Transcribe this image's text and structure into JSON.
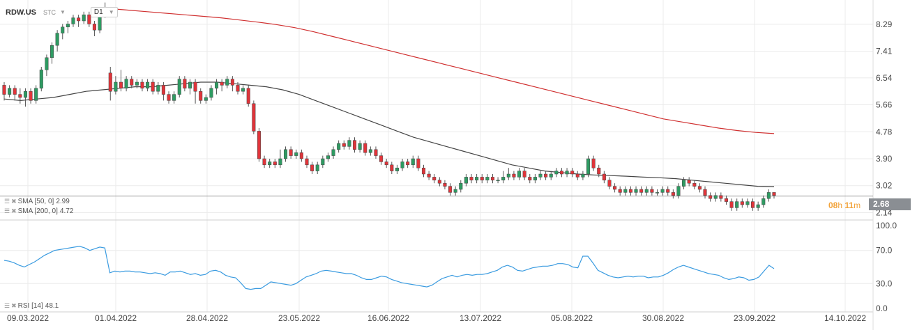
{
  "header": {
    "symbol": "RDW.US",
    "type": "STC",
    "timeframe": "D1"
  },
  "indicators": {
    "sma50": {
      "label": "SMA [50, 0]",
      "value": "2.99",
      "color": "#444444"
    },
    "sma200": {
      "label": "SMA [200, 0]",
      "value": "4.72",
      "color": "#d03030"
    },
    "rsi": {
      "label": "RSI [14]",
      "value": "48.1",
      "color": "#3a9be0"
    }
  },
  "last_price": "2.68",
  "timer": {
    "h": "08",
    "h_unit": "h",
    "m": "11",
    "m_unit": "m"
  },
  "colors": {
    "up": "#2e9b62",
    "down": "#e0343a",
    "grid": "#ebebeb",
    "last_line": "#999999"
  },
  "chart_data": {
    "type": "candlestick",
    "price_ticks": [
      "8.29",
      "7.41",
      "6.54",
      "5.66",
      "4.78",
      "3.90",
      "3.02",
      "2.14"
    ],
    "rsi_ticks": [
      "100.0",
      "70.0",
      "30.0",
      "0.0"
    ],
    "date_labels": [
      "09.03.2022",
      "01.04.2022",
      "28.04.2022",
      "23.05.2022",
      "16.06.2022",
      "13.07.2022",
      "05.08.2022",
      "30.08.2022",
      "23.09.2022",
      "14.10.2022"
    ],
    "ylim": [
      1.9,
      8.9
    ],
    "candles": [
      [
        6.3,
        6.0,
        6.4,
        5.8
      ],
      [
        6.0,
        6.2,
        6.3,
        5.9
      ],
      [
        6.2,
        6.0,
        6.3,
        5.8
      ],
      [
        6.0,
        5.9,
        6.2,
        5.7
      ],
      [
        5.9,
        6.1,
        6.2,
        5.6
      ],
      [
        6.1,
        5.8,
        6.2,
        5.7
      ],
      [
        5.8,
        6.2,
        6.3,
        5.7
      ],
      [
        6.2,
        6.8,
        6.9,
        6.1
      ],
      [
        6.8,
        7.2,
        7.3,
        6.6
      ],
      [
        7.2,
        7.6,
        7.7,
        7.0
      ],
      [
        7.6,
        8.0,
        8.1,
        7.4
      ],
      [
        8.0,
        8.2,
        8.3,
        7.8
      ],
      [
        8.2,
        8.3,
        8.4,
        8.0
      ],
      [
        8.3,
        8.5,
        8.6,
        8.2
      ],
      [
        8.5,
        8.4,
        8.6,
        8.2
      ],
      [
        8.4,
        8.6,
        8.7,
        8.3
      ],
      [
        8.6,
        8.3,
        8.7,
        8.2
      ],
      [
        8.3,
        8.1,
        8.4,
        7.9
      ],
      [
        8.1,
        8.6,
        8.7,
        8.0
      ],
      [
        8.6,
        8.8,
        9.0,
        8.5
      ],
      [
        6.7,
        6.1,
        6.9,
        5.8
      ],
      [
        6.1,
        6.4,
        6.6,
        6.0
      ],
      [
        6.4,
        6.2,
        6.8,
        6.1
      ],
      [
        6.2,
        6.5,
        6.6,
        6.1
      ],
      [
        6.5,
        6.3,
        6.6,
        6.2
      ],
      [
        6.3,
        6.4,
        6.5,
        6.2
      ],
      [
        6.4,
        6.2,
        6.5,
        6.1
      ],
      [
        6.2,
        6.4,
        6.5,
        6.1
      ],
      [
        6.4,
        6.1,
        6.5,
        6.0
      ],
      [
        6.1,
        6.3,
        6.4,
        6.0
      ],
      [
        6.3,
        6.0,
        6.4,
        5.8
      ],
      [
        6.0,
        5.8,
        6.1,
        5.7
      ],
      [
        5.8,
        6.0,
        6.1,
        5.7
      ],
      [
        6.0,
        6.5,
        6.6,
        5.9
      ],
      [
        6.5,
        6.2,
        6.6,
        6.1
      ],
      [
        6.2,
        6.4,
        6.5,
        6.0
      ],
      [
        6.4,
        6.1,
        6.5,
        5.7
      ],
      [
        6.1,
        5.8,
        6.2,
        5.7
      ],
      [
        5.8,
        5.9,
        6.0,
        5.7
      ],
      [
        5.9,
        6.2,
        6.3,
        5.8
      ],
      [
        6.2,
        6.4,
        6.5,
        6.0
      ],
      [
        6.4,
        6.3,
        6.5,
        6.1
      ],
      [
        6.3,
        6.5,
        6.6,
        6.2
      ],
      [
        6.5,
        6.3,
        6.6,
        6.1
      ],
      [
        6.3,
        6.1,
        6.4,
        6.0
      ],
      [
        6.1,
        6.2,
        6.3,
        6.0
      ],
      [
        6.2,
        5.7,
        6.3,
        5.6
      ],
      [
        5.7,
        4.8,
        5.8,
        4.7
      ],
      [
        4.8,
        3.9,
        4.9,
        3.8
      ],
      [
        3.9,
        3.7,
        4.0,
        3.6
      ],
      [
        3.7,
        3.8,
        3.9,
        3.6
      ],
      [
        3.8,
        3.7,
        3.9,
        3.6
      ],
      [
        3.7,
        3.9,
        4.2,
        3.6
      ],
      [
        3.9,
        4.2,
        4.3,
        3.8
      ],
      [
        4.2,
        4.0,
        4.3,
        3.9
      ],
      [
        4.0,
        4.1,
        4.2,
        3.9
      ],
      [
        4.1,
        3.9,
        4.2,
        3.8
      ],
      [
        3.9,
        3.7,
        4.0,
        3.6
      ],
      [
        3.7,
        3.5,
        3.8,
        3.4
      ],
      [
        3.5,
        3.7,
        3.8,
        3.4
      ],
      [
        3.7,
        3.9,
        4.0,
        3.6
      ],
      [
        3.9,
        4.0,
        4.1,
        3.8
      ],
      [
        4.0,
        4.2,
        4.3,
        3.9
      ],
      [
        4.2,
        4.4,
        4.5,
        4.1
      ],
      [
        4.4,
        4.3,
        4.5,
        4.2
      ],
      [
        4.3,
        4.5,
        4.6,
        4.2
      ],
      [
        4.5,
        4.2,
        4.6,
        4.1
      ],
      [
        4.2,
        4.4,
        4.5,
        4.1
      ],
      [
        4.4,
        4.1,
        4.5,
        4.0
      ],
      [
        4.1,
        4.2,
        4.3,
        4.0
      ],
      [
        4.2,
        4.0,
        4.3,
        3.9
      ],
      [
        4.0,
        3.8,
        4.1,
        3.7
      ],
      [
        3.8,
        3.7,
        3.9,
        3.6
      ],
      [
        3.7,
        3.5,
        3.8,
        3.4
      ],
      [
        3.5,
        3.6,
        3.7,
        3.4
      ],
      [
        3.6,
        3.8,
        3.9,
        3.5
      ],
      [
        3.8,
        3.7,
        3.9,
        3.6
      ],
      [
        3.7,
        3.9,
        4.0,
        3.6
      ],
      [
        3.9,
        3.6,
        4.0,
        3.5
      ],
      [
        3.6,
        3.4,
        3.7,
        3.3
      ],
      [
        3.4,
        3.3,
        3.5,
        3.2
      ],
      [
        3.3,
        3.2,
        3.4,
        3.1
      ],
      [
        3.2,
        3.1,
        3.3,
        3.0
      ],
      [
        3.1,
        3.0,
        3.2,
        2.9
      ],
      [
        3.0,
        2.8,
        3.1,
        2.7
      ],
      [
        2.8,
        2.9,
        3.0,
        2.7
      ],
      [
        2.9,
        3.1,
        3.2,
        2.8
      ],
      [
        3.1,
        3.3,
        3.4,
        3.0
      ],
      [
        3.3,
        3.2,
        3.4,
        3.1
      ],
      [
        3.2,
        3.3,
        3.4,
        3.1
      ],
      [
        3.3,
        3.2,
        3.4,
        3.1
      ],
      [
        3.2,
        3.3,
        3.4,
        3.1
      ],
      [
        3.3,
        3.2,
        3.4,
        3.1
      ],
      [
        3.2,
        3.2,
        3.3,
        3.1
      ],
      [
        3.2,
        3.3,
        3.5,
        3.1
      ],
      [
        3.3,
        3.4,
        3.6,
        3.2
      ],
      [
        3.4,
        3.3,
        3.5,
        3.2
      ],
      [
        3.3,
        3.5,
        3.6,
        3.2
      ],
      [
        3.5,
        3.3,
        3.6,
        3.2
      ],
      [
        3.3,
        3.2,
        3.4,
        3.1
      ],
      [
        3.2,
        3.3,
        3.4,
        3.1
      ],
      [
        3.3,
        3.4,
        3.5,
        3.2
      ],
      [
        3.4,
        3.3,
        3.5,
        3.2
      ],
      [
        3.3,
        3.4,
        3.5,
        3.2
      ],
      [
        3.4,
        3.5,
        3.6,
        3.3
      ],
      [
        3.5,
        3.4,
        3.6,
        3.3
      ],
      [
        3.4,
        3.5,
        3.6,
        3.3
      ],
      [
        3.5,
        3.4,
        3.6,
        3.3
      ],
      [
        3.4,
        3.3,
        3.5,
        3.2
      ],
      [
        3.3,
        3.4,
        3.5,
        3.2
      ],
      [
        3.4,
        3.9,
        4.0,
        3.3
      ],
      [
        3.9,
        3.6,
        4.0,
        3.5
      ],
      [
        3.6,
        3.4,
        3.7,
        3.3
      ],
      [
        3.4,
        3.2,
        3.5,
        3.1
      ],
      [
        3.2,
        3.0,
        3.3,
        2.9
      ],
      [
        3.0,
        2.9,
        3.1,
        2.8
      ],
      [
        2.9,
        2.8,
        3.0,
        2.7
      ],
      [
        2.8,
        2.9,
        3.0,
        2.7
      ],
      [
        2.9,
        2.8,
        3.0,
        2.7
      ],
      [
        2.8,
        2.9,
        3.0,
        2.7
      ],
      [
        2.9,
        2.8,
        3.0,
        2.7
      ],
      [
        2.8,
        2.9,
        3.0,
        2.7
      ],
      [
        2.9,
        2.8,
        3.0,
        2.7
      ],
      [
        2.8,
        2.8,
        2.9,
        2.7
      ],
      [
        2.8,
        2.9,
        3.0,
        2.7
      ],
      [
        2.9,
        2.8,
        3.0,
        2.7
      ],
      [
        2.8,
        2.7,
        2.9,
        2.6
      ],
      [
        2.7,
        3.0,
        3.1,
        2.6
      ],
      [
        3.0,
        3.2,
        3.3,
        2.9
      ],
      [
        3.2,
        3.1,
        3.3,
        3.0
      ],
      [
        3.1,
        3.0,
        3.2,
        2.9
      ],
      [
        3.0,
        2.9,
        3.1,
        2.8
      ],
      [
        2.9,
        2.7,
        3.0,
        2.6
      ],
      [
        2.7,
        2.6,
        2.8,
        2.5
      ],
      [
        2.6,
        2.7,
        2.8,
        2.5
      ],
      [
        2.7,
        2.6,
        2.8,
        2.5
      ],
      [
        2.6,
        2.5,
        2.7,
        2.4
      ],
      [
        2.5,
        2.3,
        2.6,
        2.2
      ],
      [
        2.3,
        2.5,
        2.6,
        2.2
      ],
      [
        2.5,
        2.4,
        2.6,
        2.3
      ],
      [
        2.4,
        2.5,
        2.6,
        2.3
      ],
      [
        2.5,
        2.3,
        2.6,
        2.2
      ],
      [
        2.3,
        2.4,
        2.5,
        2.2
      ],
      [
        2.4,
        2.6,
        2.7,
        2.3
      ],
      [
        2.6,
        2.8,
        2.9,
        2.5
      ],
      [
        2.8,
        2.7,
        2.8,
        2.6
      ]
    ],
    "sma50": [
      5.85,
      5.8,
      5.85,
      5.9,
      6.0,
      6.1,
      6.15,
      6.2,
      6.25,
      6.25,
      6.3,
      6.35,
      6.4,
      6.4,
      6.35,
      6.3,
      6.25,
      6.15,
      6.0,
      5.8,
      5.6,
      5.4,
      5.2,
      5.0,
      4.8,
      4.6,
      4.45,
      4.3,
      4.15,
      4.0,
      3.85,
      3.7,
      3.6,
      3.5,
      3.45,
      3.4,
      3.37,
      3.35,
      3.33,
      3.3,
      3.28,
      3.25,
      3.2,
      3.15,
      3.1,
      3.05,
      3.0,
      2.99
    ],
    "sma200": [
      8.8,
      8.75,
      8.7,
      8.65,
      8.6,
      8.55,
      8.5,
      8.43,
      8.36,
      8.28,
      8.18,
      8.05,
      7.9,
      7.75,
      7.6,
      7.45,
      7.3,
      7.15,
      7.0,
      6.85,
      6.7,
      6.55,
      6.4,
      6.25,
      6.1,
      5.95,
      5.8,
      5.65,
      5.5,
      5.35,
      5.2,
      5.1,
      5.0,
      4.9,
      4.82,
      4.76,
      4.72
    ],
    "rsi": [
      58,
      57,
      55,
      52,
      50,
      53,
      56,
      60,
      64,
      67,
      70,
      71,
      72,
      73,
      74,
      75,
      73,
      70,
      72,
      74,
      73,
      43,
      45,
      44,
      45,
      45,
      44,
      44,
      43,
      42,
      43,
      42,
      40,
      44,
      44,
      45,
      43,
      41,
      42,
      40,
      41,
      45,
      46,
      44,
      40,
      38,
      37,
      31,
      24,
      23,
      24,
      24,
      28,
      32,
      31,
      30,
      29,
      28,
      30,
      34,
      38,
      40,
      42,
      45,
      46,
      45,
      44,
      43,
      42,
      42,
      40,
      37,
      35,
      35,
      37,
      39,
      38,
      35,
      33,
      31,
      30,
      29,
      28,
      27,
      26,
      28,
      32,
      36,
      38,
      40,
      38,
      40,
      41,
      40,
      41,
      41,
      42,
      44,
      46,
      50,
      52,
      50,
      46,
      45,
      47,
      49,
      50,
      51,
      51,
      52,
      54,
      54,
      53,
      50,
      49,
      63,
      63,
      55,
      46,
      43,
      40,
      38,
      37,
      38,
      39,
      38,
      39,
      39,
      37,
      38,
      38,
      40,
      43,
      47,
      50,
      52,
      50,
      48,
      46,
      44,
      42,
      41,
      40,
      37,
      35,
      36,
      38,
      37,
      34,
      35,
      38,
      45,
      52,
      48
    ]
  }
}
